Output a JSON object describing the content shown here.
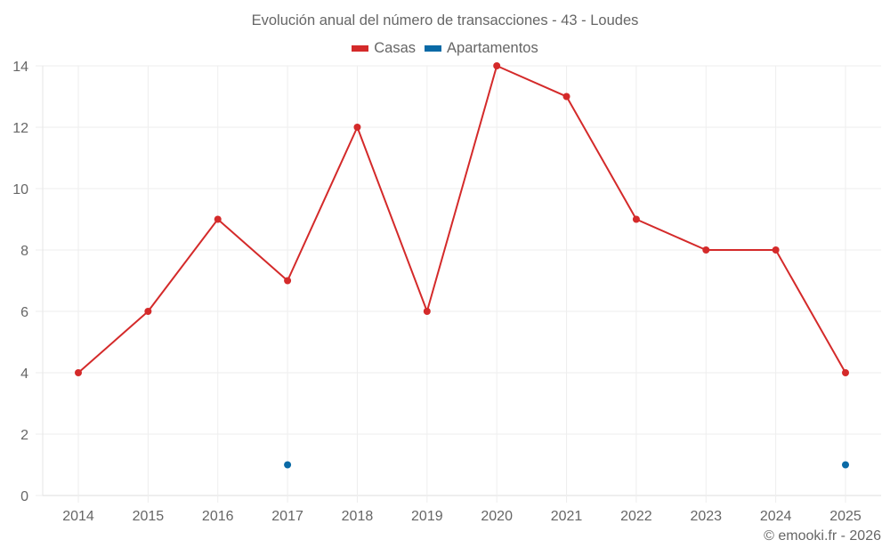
{
  "header": {
    "title": "Evolución anual del número de transacciones - 43 - Loudes"
  },
  "legend": [
    {
      "label": "Casas",
      "color": "#d42a2a"
    },
    {
      "label": "Apartamentos",
      "color": "#0a6aa6"
    }
  ],
  "footer": {
    "credit": "© emooki.fr - 2026"
  },
  "chart_data": {
    "type": "line",
    "title": "Evolución anual del número de transacciones - 43 - Loudes",
    "xlabel": "",
    "ylabel": "",
    "categories": [
      "2014",
      "2015",
      "2016",
      "2017",
      "2018",
      "2019",
      "2020",
      "2021",
      "2022",
      "2023",
      "2024",
      "2025"
    ],
    "series": [
      {
        "name": "Casas",
        "color": "#d42a2a",
        "values": [
          4,
          6,
          9,
          7,
          12,
          6,
          14,
          13,
          9,
          8,
          8,
          4
        ]
      },
      {
        "name": "Apartamentos",
        "color": "#0a6aa6",
        "values": [
          null,
          null,
          null,
          1,
          null,
          null,
          null,
          null,
          null,
          null,
          null,
          1
        ]
      }
    ],
    "yticks": [
      0,
      2,
      4,
      6,
      8,
      10,
      12,
      14
    ],
    "ylim": [
      0,
      14
    ],
    "grid": true,
    "legend_position": "top"
  }
}
